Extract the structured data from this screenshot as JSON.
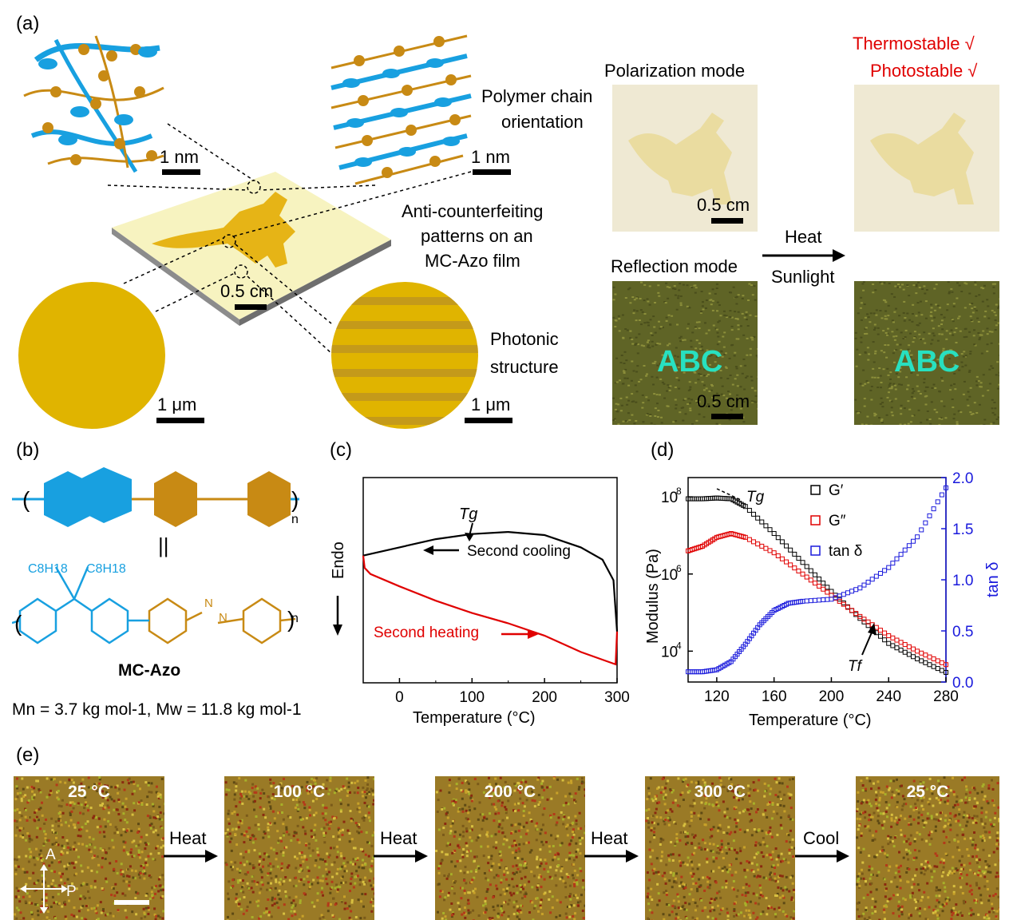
{
  "panels": {
    "a": "(a)",
    "b": "(b)",
    "c": "(c)",
    "d": "(d)",
    "e": "(e)"
  },
  "panel_a": {
    "polymer_chain_line1": "Polymer chain",
    "polymer_chain_line2": "orientation",
    "scale_nm_left": "1 nm",
    "scale_nm_right": "1 nm",
    "anti_line1": "Anti-counterfeiting",
    "anti_line2": "patterns on an",
    "anti_line3": "MC-Azo film",
    "scale_film": "0.5 cm",
    "photonic_line1": "Photonic",
    "photonic_line2": "structure",
    "scale_um_left": "1 μm",
    "scale_um_right": "1 μm",
    "polarization_mode": "Polarization mode",
    "reflection_mode": "Reflection mode",
    "scale_pol": "0.5 cm",
    "scale_ref": "0.5 cm",
    "abc_left": "ABC",
    "abc_right": "ABC",
    "heat": "Heat",
    "sunlight": "Sunlight",
    "thermostable": "Thermostable √",
    "photostable": "Photostable √"
  },
  "panel_b": {
    "chain_n_top": "n",
    "chain_n_bottom": "n",
    "equals": "||",
    "substituent_left": "C8H18",
    "substituent_right": "C8H18",
    "azo_n1": "N",
    "azo_n2": "N",
    "name": "MC-Azo",
    "molar_mass": "Mn = 3.7 kg mol-1, Mw = 11.8 kg mol-1"
  },
  "chart_data": [
    {
      "type": "line",
      "panel": "c",
      "xlabel": "Temperature (°C)",
      "ylabel": "Endo",
      "xlim": [
        -50,
        300
      ],
      "x_ticks": [
        0,
        100,
        200,
        300
      ],
      "series": [
        {
          "name": "Second cooling",
          "color": "#000000",
          "x": [
            -50,
            0,
            50,
            100,
            150,
            200,
            250,
            280,
            295,
            300
          ],
          "y": [
            0.62,
            0.66,
            0.7,
            0.725,
            0.735,
            0.72,
            0.66,
            0.6,
            0.5,
            0.25
          ]
        },
        {
          "name": "Second heating",
          "color": "#e00000",
          "x": [
            -50,
            -48,
            -40,
            0,
            50,
            100,
            150,
            200,
            250,
            298,
            300
          ],
          "y": [
            0.62,
            0.56,
            0.53,
            0.47,
            0.4,
            0.34,
            0.29,
            0.23,
            0.15,
            0.09,
            0.25
          ]
        }
      ],
      "annotations": [
        {
          "text": "Tg",
          "x": 105
        },
        {
          "text": "Second cooling",
          "x": 175
        },
        {
          "text": "Second heating",
          "x": 70
        }
      ]
    },
    {
      "type": "scatter",
      "panel": "d",
      "xlabel": "Temperature (°C)",
      "ylabel": "Modulus (Pa)",
      "ylabel_right": "tan δ",
      "xlim": [
        100,
        280
      ],
      "x_ticks": [
        120,
        160,
        200,
        240,
        280
      ],
      "ylim_log10": [
        3.2,
        8.5
      ],
      "y_ticks_log10": [
        4,
        6,
        8
      ],
      "y_tick_labels": [
        "10",
        "10",
        "10"
      ],
      "y_tick_exponents": [
        "4",
        "6",
        "8"
      ],
      "ylim_right": [
        0,
        2.0
      ],
      "y_ticks_right": [
        0.0,
        0.5,
        1.0,
        1.5,
        2.0
      ],
      "legend_position": "top-right",
      "series": [
        {
          "name": "G′",
          "color": "#000000",
          "axis": "left",
          "x": [
            100,
            110,
            120,
            130,
            140,
            160,
            180,
            200,
            220,
            240,
            260,
            280
          ],
          "y_log10": [
            7.95,
            7.95,
            7.97,
            7.95,
            7.75,
            7.05,
            6.3,
            5.55,
            4.85,
            4.2,
            3.8,
            3.45
          ]
        },
        {
          "name": "G″",
          "color": "#e00000",
          "axis": "left",
          "x": [
            100,
            110,
            120,
            130,
            140,
            160,
            180,
            200,
            220,
            240,
            260,
            280
          ],
          "y_log10": [
            6.6,
            6.72,
            6.95,
            7.05,
            6.95,
            6.55,
            6.0,
            5.45,
            4.9,
            4.4,
            4.0,
            3.65
          ]
        },
        {
          "name": "tan δ",
          "color": "#1a1adc",
          "axis": "right",
          "x": [
            100,
            110,
            120,
            130,
            140,
            150,
            160,
            170,
            180,
            200,
            220,
            240,
            260,
            280
          ],
          "y": [
            0.1,
            0.1,
            0.12,
            0.2,
            0.37,
            0.56,
            0.7,
            0.77,
            0.79,
            0.81,
            0.92,
            1.12,
            1.42,
            1.9
          ]
        }
      ],
      "annotations": [
        {
          "text": "Tg",
          "x": 124
        },
        {
          "text": "Tf",
          "x": 230
        }
      ]
    }
  ],
  "panel_e": {
    "frames": [
      "25 °C",
      "100 °C",
      "200 °C",
      "300 °C",
      "25 °C"
    ],
    "arrows": [
      "Heat",
      "Heat",
      "Heat",
      "Cool"
    ],
    "axis_a": "A",
    "axis_p": "P"
  }
}
